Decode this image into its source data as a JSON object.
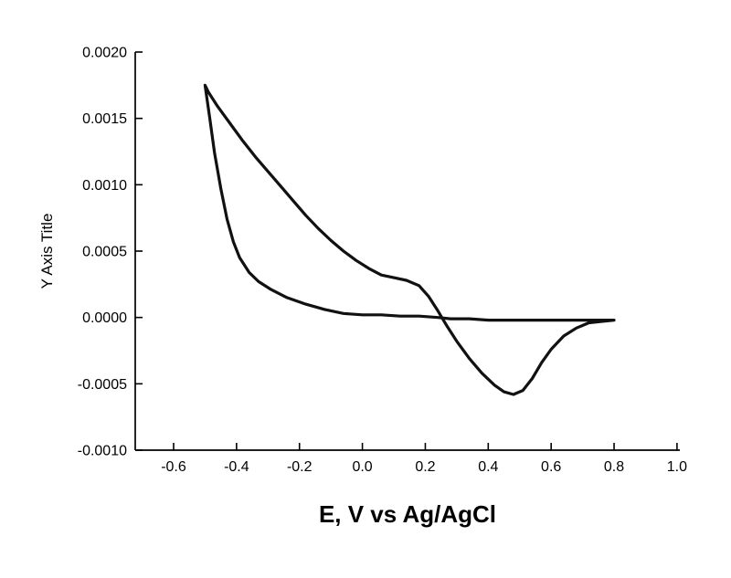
{
  "figure": {
    "background_color": "#ffffff",
    "axis_color": "#000000",
    "tick_label_color": "#000000"
  },
  "chart_data": {
    "type": "line",
    "title": "",
    "xlabel": "E, V vs Ag/AgCl",
    "ylabel": "Y Axis Title",
    "xlim": [
      -0.722,
      1.009
    ],
    "ylim": [
      -0.001,
      0.002
    ],
    "x_ticks": [
      -0.6,
      -0.4,
      -0.2,
      0.0,
      0.2,
      0.4,
      0.6,
      0.8,
      1.0
    ],
    "x_tick_labels": [
      "-0.6",
      "-0.4",
      "-0.2",
      "0.0",
      "0.2",
      "0.4",
      "0.6",
      "0.8",
      "1.0"
    ],
    "y_ticks": [
      -0.001,
      -0.0005,
      0.0,
      0.0005,
      0.001,
      0.0015,
      0.002
    ],
    "y_tick_labels": [
      "-0.0010",
      "-0.0005",
      "0.0000",
      "0.0005",
      "0.0010",
      "0.0015",
      "0.0020"
    ],
    "grid": false,
    "legend": null,
    "line_color": "#111111",
    "line_width": 3.2,
    "series": [
      {
        "name": "cyclic-voltammogram",
        "points": [
          [
            0.8,
            -2e-05
          ],
          [
            0.72,
            -2e-05
          ],
          [
            0.64,
            -2e-05
          ],
          [
            0.56,
            -2e-05
          ],
          [
            0.48,
            -2e-05
          ],
          [
            0.4,
            -2e-05
          ],
          [
            0.34,
            -1e-05
          ],
          [
            0.28,
            -1e-05
          ],
          [
            0.24,
            0.0
          ],
          [
            0.18,
            1e-05
          ],
          [
            0.12,
            1e-05
          ],
          [
            0.06,
            2e-05
          ],
          [
            0.0,
            2e-05
          ],
          [
            -0.06,
            3e-05
          ],
          [
            -0.12,
            6e-05
          ],
          [
            -0.18,
            0.0001
          ],
          [
            -0.24,
            0.00015
          ],
          [
            -0.29,
            0.00021
          ],
          [
            -0.33,
            0.00027
          ],
          [
            -0.36,
            0.00034
          ],
          [
            -0.39,
            0.00045
          ],
          [
            -0.41,
            0.00057
          ],
          [
            -0.43,
            0.00074
          ],
          [
            -0.45,
            0.00097
          ],
          [
            -0.47,
            0.00124
          ],
          [
            -0.485,
            0.0015
          ],
          [
            -0.5,
            0.00175
          ],
          [
            -0.49,
            0.0017
          ],
          [
            -0.46,
            0.00159
          ],
          [
            -0.42,
            0.00146
          ],
          [
            -0.38,
            0.00133
          ],
          [
            -0.34,
            0.00121
          ],
          [
            -0.3,
            0.0011
          ],
          [
            -0.26,
            0.00099
          ],
          [
            -0.22,
            0.00088
          ],
          [
            -0.18,
            0.00077
          ],
          [
            -0.14,
            0.00067
          ],
          [
            -0.1,
            0.00058
          ],
          [
            -0.06,
            0.0005
          ],
          [
            -0.02,
            0.00043
          ],
          [
            0.02,
            0.00037
          ],
          [
            0.06,
            0.00032
          ],
          [
            0.1,
            0.0003
          ],
          [
            0.14,
            0.00028
          ],
          [
            0.18,
            0.00024
          ],
          [
            0.21,
            0.00016
          ],
          [
            0.24,
            5e-05
          ],
          [
            0.27,
            -7e-05
          ],
          [
            0.3,
            -0.00018
          ],
          [
            0.34,
            -0.00031
          ],
          [
            0.38,
            -0.00042
          ],
          [
            0.42,
            -0.00051
          ],
          [
            0.45,
            -0.00056
          ],
          [
            0.48,
            -0.00058
          ],
          [
            0.51,
            -0.00055
          ],
          [
            0.54,
            -0.00046
          ],
          [
            0.57,
            -0.00034
          ],
          [
            0.6,
            -0.00024
          ],
          [
            0.64,
            -0.00014
          ],
          [
            0.68,
            -8e-05
          ],
          [
            0.72,
            -4e-05
          ],
          [
            0.76,
            -3e-05
          ],
          [
            0.8,
            -2e-05
          ]
        ]
      }
    ]
  }
}
